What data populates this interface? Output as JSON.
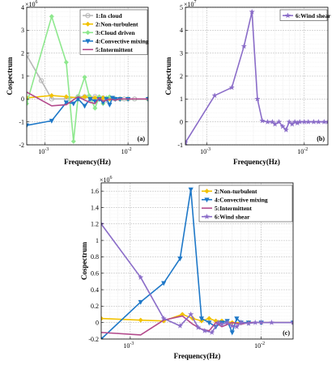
{
  "chart_data": [
    {
      "type": "line",
      "panel_label": "(a)",
      "xlabel": "Frequency(Hz)",
      "ylabel": "Cospectrum",
      "exponent": "×10",
      "exponent_power": "6",
      "x_scale": "log",
      "x_ticks": [
        {
          "value": 0.001,
          "base": "10",
          "power": "-3"
        },
        {
          "value": 0.01,
          "base": "10",
          "power": "-2"
        }
      ],
      "y_ticks": [
        -2,
        -1,
        0,
        1,
        2,
        3,
        4
      ],
      "ylim": [
        -2,
        4
      ],
      "xlim": [
        0.0006,
        0.0175
      ],
      "grid": true,
      "legend_position": "top-right",
      "series": [
        {
          "name": "1:In cloud",
          "color": "#b7b7b7",
          "marker": "circle",
          "x": [
            0.0006,
            0.0009,
            0.0012,
            0.0018,
            0.0025,
            0.003,
            0.0035,
            0.004,
            0.0045,
            0.005,
            0.0055,
            0.006,
            0.007,
            0.008,
            0.009,
            0.01,
            0.012,
            0.0175
          ],
          "y": [
            1.9,
            0.8,
            0.0,
            0.0,
            0.1,
            0.1,
            0.05,
            0.1,
            0.0,
            0.05,
            -0.05,
            0.05,
            0.0,
            0.0,
            0.0,
            0.0,
            0.0,
            0.0
          ]
        },
        {
          "name": "2:Non-turbulent",
          "color": "#f2c200",
          "marker": "diamond",
          "x": [
            0.0006,
            0.0012,
            0.0018,
            0.0025,
            0.003,
            0.0035,
            0.004,
            0.005,
            0.006,
            0.007,
            0.008,
            0.01,
            0.0175
          ],
          "y": [
            0.05,
            0.15,
            0.1,
            0.05,
            0.1,
            0.05,
            0.05,
            0.05,
            0.0,
            0.0,
            0.0,
            0.0,
            0.0
          ]
        },
        {
          "name": "3:Cloud driven",
          "color": "#8ee88e",
          "marker": "diamond",
          "x": [
            0.0006,
            0.0012,
            0.0018,
            0.0022,
            0.0025,
            0.003,
            0.0034,
            0.004,
            0.0045,
            0.005,
            0.0055,
            0.006,
            0.007,
            0.008,
            0.01,
            0.0175
          ],
          "y": [
            -0.2,
            3.6,
            1.6,
            -1.85,
            0.1,
            0.95,
            0.15,
            -0.4,
            0.1,
            -0.2,
            0.05,
            0.1,
            0.0,
            0.0,
            0.0,
            0.0
          ]
        },
        {
          "name": "4:Convective mixing",
          "color": "#1e78c8",
          "marker": "triangle-down",
          "x": [
            0.0006,
            0.0012,
            0.0018,
            0.0022,
            0.0025,
            0.003,
            0.0035,
            0.004,
            0.0045,
            0.005,
            0.0055,
            0.006,
            0.0065,
            0.007,
            0.008,
            0.01,
            0.0175
          ],
          "y": [
            -1.15,
            -0.95,
            -0.15,
            -0.2,
            0.0,
            -0.3,
            0.0,
            -0.1,
            0.0,
            -0.15,
            0.0,
            -0.25,
            0.05,
            0.0,
            0.0,
            0.0,
            0.0
          ]
        },
        {
          "name": "5:Intermittent",
          "color": "#b34a8c",
          "marker": "none",
          "x": [
            0.0006,
            0.0012,
            0.0018,
            0.0025,
            0.003,
            0.0035,
            0.004,
            0.0045,
            0.005,
            0.006,
            0.007,
            0.008,
            0.01,
            0.0175
          ],
          "y": [
            0.3,
            -0.3,
            -0.25,
            0.1,
            -0.05,
            -0.15,
            -0.2,
            0.05,
            -0.1,
            0.0,
            -0.05,
            0.0,
            0.0,
            0.0
          ]
        }
      ]
    },
    {
      "type": "line",
      "panel_label": "(b)",
      "xlabel": "Frequency(Hz)",
      "ylabel": "Cospectrum",
      "exponent": "×10",
      "exponent_power": "7",
      "x_scale": "log",
      "x_ticks": [
        {
          "value": 0.001,
          "base": "10",
          "power": "-3"
        },
        {
          "value": 0.01,
          "base": "10",
          "power": "-2"
        }
      ],
      "y_ticks": [
        -1,
        0,
        1,
        2,
        3,
        4,
        5
      ],
      "ylim": [
        -1,
        5
      ],
      "xlim": [
        0.0006,
        0.0175
      ],
      "grid": true,
      "legend_position": "top-right",
      "series": [
        {
          "name": "6:Wind shear",
          "color": "#8a6cc8",
          "marker": "star",
          "x": [
            0.0006,
            0.0012,
            0.0018,
            0.0024,
            0.0029,
            0.0033,
            0.0037,
            0.0042,
            0.0047,
            0.005,
            0.0055,
            0.006,
            0.0065,
            0.007,
            0.0075,
            0.008,
            0.0085,
            0.009,
            0.01,
            0.011,
            0.0125,
            0.014,
            0.016,
            0.0175
          ],
          "y": [
            -0.9,
            1.15,
            1.5,
            3.3,
            4.8,
            1.0,
            0.05,
            0.0,
            0.0,
            -0.1,
            0.0,
            -0.2,
            -0.35,
            0.0,
            -0.1,
            0.0,
            -0.05,
            0.0,
            0.0,
            0.0,
            0.0,
            0.0,
            0.0,
            0.0
          ]
        }
      ]
    },
    {
      "type": "line",
      "panel_label": "(c)",
      "xlabel": "Frequency(Hz)",
      "ylabel": "Cospectrum",
      "exponent": "×10",
      "exponent_power": "6",
      "x_scale": "log",
      "x_ticks": [
        {
          "value": 0.001,
          "base": "10",
          "power": "-3"
        },
        {
          "value": 0.01,
          "base": "10",
          "power": "-2"
        }
      ],
      "y_ticks": [
        -0.2,
        0,
        0.2,
        0.4,
        0.6,
        0.8,
        1,
        1.2,
        1.4,
        1.6
      ],
      "ylim": [
        -0.2,
        1.7
      ],
      "xlim": [
        0.0006,
        0.0175
      ],
      "grid": true,
      "legend_position": "top-right",
      "series": [
        {
          "name": "2:Non-turbulent",
          "color": "#f2c200",
          "marker": "diamond",
          "x": [
            0.0006,
            0.0012,
            0.0018,
            0.0025,
            0.003,
            0.0035,
            0.004,
            0.0045,
            0.005,
            0.006,
            0.007,
            0.008,
            0.01,
            0.0175
          ],
          "y": [
            0.05,
            0.03,
            0.02,
            0.1,
            0.05,
            0.02,
            0.05,
            0.02,
            0.02,
            0.0,
            0.0,
            0.0,
            0.0,
            0.0
          ]
        },
        {
          "name": "4:Convective mixing",
          "color": "#1e78c8",
          "marker": "triangle-down",
          "x": [
            0.0006,
            0.0012,
            0.0018,
            0.0024,
            0.0029,
            0.0035,
            0.004,
            0.0045,
            0.005,
            0.0055,
            0.006,
            0.0065,
            0.007,
            0.008,
            0.01,
            0.0175
          ],
          "y": [
            -0.2,
            0.25,
            0.48,
            0.78,
            1.62,
            0.05,
            0.0,
            -0.05,
            0.0,
            0.02,
            -0.12,
            0.05,
            0.0,
            0.0,
            0.0,
            0.0
          ]
        },
        {
          "name": "5:Intermittent",
          "color": "#b34a8c",
          "marker": "none",
          "x": [
            0.0006,
            0.0012,
            0.0018,
            0.0025,
            0.003,
            0.0035,
            0.004,
            0.0045,
            0.005,
            0.006,
            0.007,
            0.008,
            0.01,
            0.0175
          ],
          "y": [
            -0.12,
            -0.15,
            0.03,
            0.08,
            -0.02,
            -0.08,
            -0.1,
            0.0,
            -0.05,
            0.0,
            -0.02,
            0.0,
            0.0,
            0.0
          ]
        },
        {
          "name": "6:Wind shear",
          "color": "#8a6cc8",
          "marker": "star",
          "x": [
            0.0006,
            0.0012,
            0.0018,
            0.0024,
            0.0029,
            0.0033,
            0.0037,
            0.0042,
            0.0047,
            0.005,
            0.0055,
            0.006,
            0.0065,
            0.007,
            0.008,
            0.009,
            0.01,
            0.012,
            0.0175
          ],
          "y": [
            1.2,
            0.55,
            0.05,
            -0.04,
            0.1,
            -0.06,
            -0.1,
            -0.12,
            0.0,
            -0.02,
            0.0,
            -0.04,
            -0.05,
            0.0,
            -0.01,
            0.0,
            0.0,
            0.0,
            0.0
          ]
        }
      ]
    }
  ]
}
